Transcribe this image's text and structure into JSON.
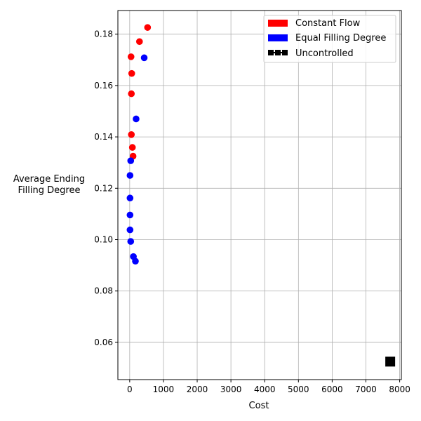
{
  "chart_data": {
    "type": "scatter",
    "title": "",
    "xlabel": "Cost",
    "ylabel": [
      "Average Ending",
      "Filling Degree"
    ],
    "xlim": [
      -350,
      8050
    ],
    "ylim": [
      0.0455,
      0.1892
    ],
    "xticks": [
      0,
      1000,
      2000,
      3000,
      4000,
      5000,
      6000,
      7000,
      8000
    ],
    "yticks": [
      0.06,
      0.08,
      0.1,
      0.12,
      0.14,
      0.16,
      0.18
    ],
    "grid": true,
    "legend_position": "top-right",
    "series": [
      {
        "name": "Constant Flow",
        "color": "#ff0000",
        "marker": "circle",
        "points": [
          {
            "x": 530,
            "y": 0.1826
          },
          {
            "x": 290,
            "y": 0.1771
          },
          {
            "x": 40,
            "y": 0.1712
          },
          {
            "x": 60,
            "y": 0.1647
          },
          {
            "x": 50,
            "y": 0.1568
          },
          {
            "x": 50,
            "y": 0.1409
          },
          {
            "x": 80,
            "y": 0.1359
          },
          {
            "x": 100,
            "y": 0.1325
          }
        ]
      },
      {
        "name": "Equal Filling Degree",
        "color": "#0000ff",
        "marker": "circle",
        "points": [
          {
            "x": 430,
            "y": 0.1708
          },
          {
            "x": 190,
            "y": 0.147
          },
          {
            "x": 30,
            "y": 0.1307
          },
          {
            "x": 10,
            "y": 0.125
          },
          {
            "x": 10,
            "y": 0.1162
          },
          {
            "x": 10,
            "y": 0.1096
          },
          {
            "x": 10,
            "y": 0.1038
          },
          {
            "x": 30,
            "y": 0.0993
          },
          {
            "x": 110,
            "y": 0.0934
          },
          {
            "x": 170,
            "y": 0.0916
          }
        ]
      },
      {
        "name": "Uncontrolled",
        "color": "#000000",
        "marker": "square",
        "points": [
          {
            "x": 7720,
            "y": 0.0525
          }
        ]
      }
    ]
  }
}
